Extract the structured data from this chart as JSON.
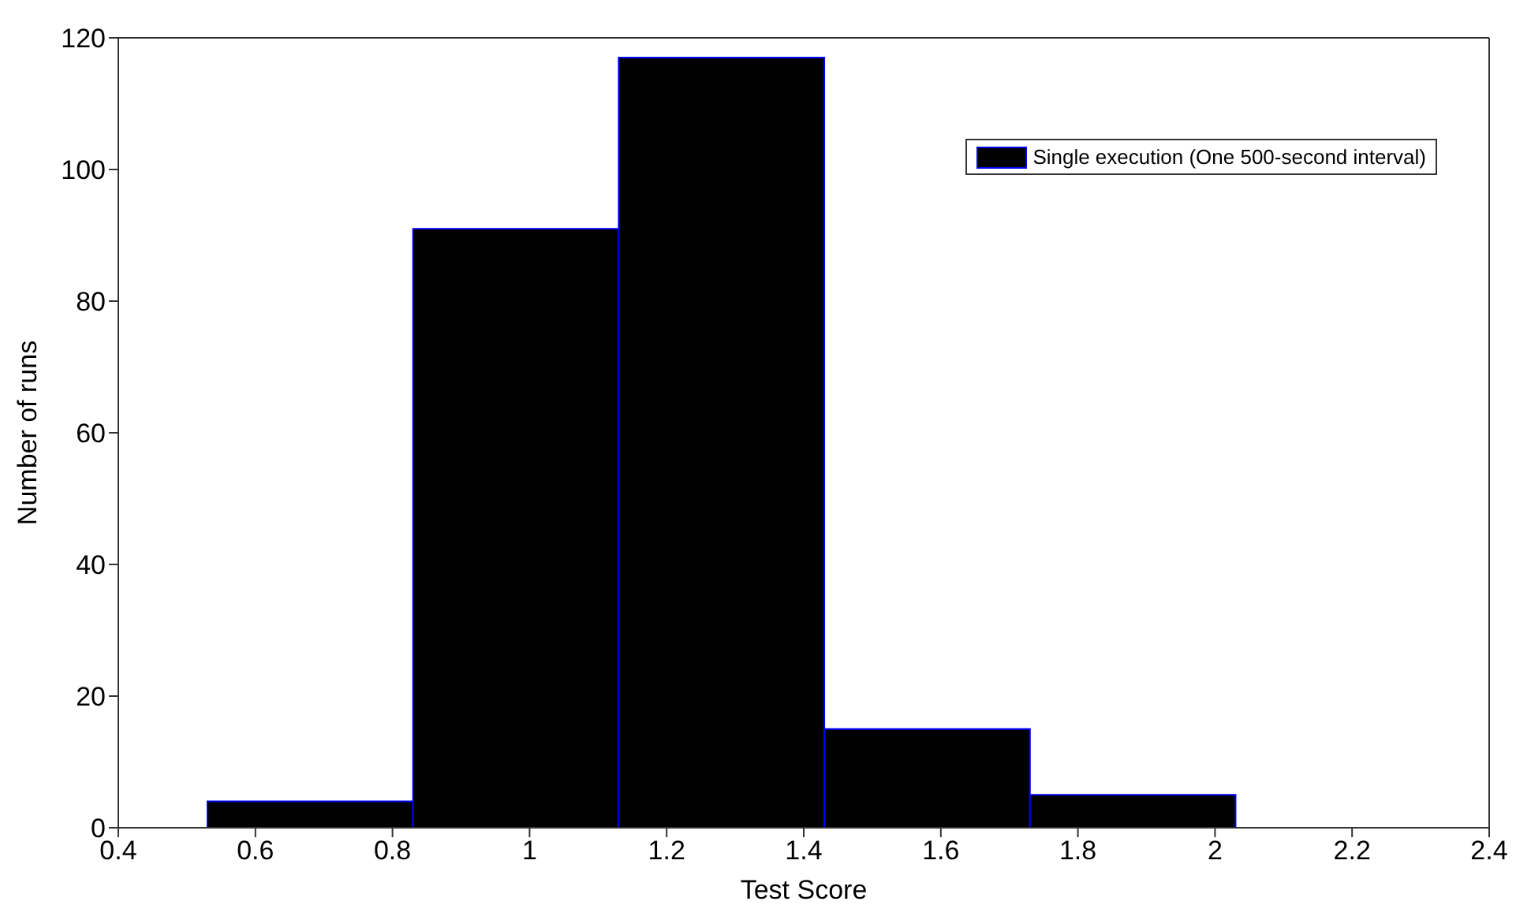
{
  "chart_data": {
    "type": "histogram",
    "xlabel": "Test Score",
    "ylabel": "Number of runs",
    "bins": [
      0.53,
      0.83,
      1.13,
      1.43,
      1.73,
      2.03
    ],
    "series": [
      {
        "name": "Single execution (One 500-second interval)",
        "color": "#000000",
        "values": [
          4,
          91,
          117,
          15,
          5
        ]
      }
    ],
    "xlim": [
      0.4,
      2.4
    ],
    "xticks": [
      0.4,
      0.6,
      0.8,
      1,
      1.2,
      1.4,
      1.6,
      1.8,
      2,
      2.2,
      2.4
    ],
    "ylim": [
      0,
      120
    ],
    "yticks": [
      0,
      20,
      40,
      60,
      80,
      100,
      120
    ],
    "legend": "top right",
    "grid": false
  }
}
